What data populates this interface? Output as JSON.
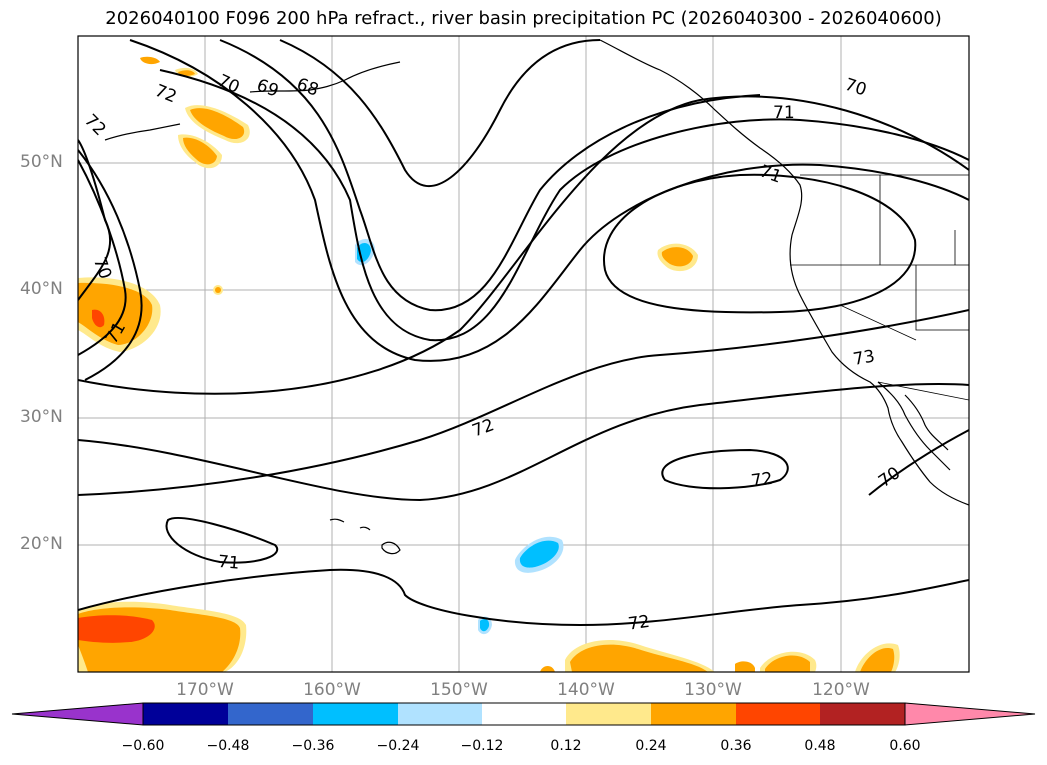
{
  "title": "2026040100 F096 200 hPa refract., river basin precipitation PC (2026040300 - 2026040600)",
  "map": {
    "region": "North-East Pacific and western North America",
    "lat_labels": [
      "50°N",
      "40°N",
      "30°N",
      "20°N"
    ],
    "lon_labels": [
      "170°W",
      "160°W",
      "150°W",
      "140°W",
      "130°W",
      "120°W"
    ],
    "contour_labels": [
      "72",
      "70",
      "69",
      "68",
      "72",
      "70",
      "71",
      "70",
      "71",
      "71",
      "72",
      "73",
      "72",
      "72",
      "70",
      "71"
    ],
    "contour_field": "200 hPa refractivity",
    "shaded_field": "river basin precipitation PC"
  },
  "colorbar": {
    "ticks": [
      "−0.60",
      "−0.48",
      "−0.36",
      "−0.24",
      "−0.12",
      "0.12",
      "0.24",
      "0.36",
      "0.48",
      "0.60"
    ],
    "colors": [
      "#9933cc",
      "#000099",
      "#3366cc",
      "#00bfff",
      "#b0e2ff",
      "#ffffff",
      "#ffe98c",
      "#ffa500",
      "#ff4500",
      "#b22222",
      "#ff88aa"
    ],
    "extend": "both"
  }
}
